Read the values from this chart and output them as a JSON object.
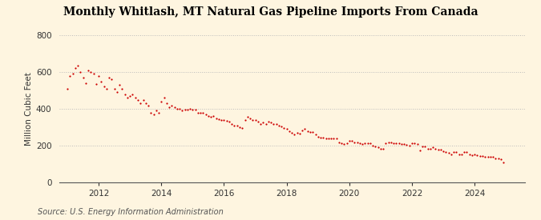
{
  "title": "Monthly Whitlash, MT Natural Gas Pipeline Imports From Canada",
  "ylabel": "Million Cubic Feet",
  "source": "Source: U.S. Energy Information Administration",
  "background_color": "#FEF5E0",
  "plot_bg_color": "#FEF5E0",
  "dot_color": "#CC0000",
  "dot_size": 2.5,
  "ylim": [
    0,
    800
  ],
  "yticks": [
    0,
    200,
    400,
    600,
    800
  ],
  "xlim_start": 2010.75,
  "xlim_end": 2025.6,
  "xticks": [
    2012,
    2014,
    2016,
    2018,
    2020,
    2022,
    2024
  ],
  "grid_color": "#BBBBBB",
  "data": [
    [
      2011.0,
      510
    ],
    [
      2011.083,
      580
    ],
    [
      2011.167,
      590
    ],
    [
      2011.25,
      620
    ],
    [
      2011.333,
      635
    ],
    [
      2011.417,
      600
    ],
    [
      2011.5,
      570
    ],
    [
      2011.583,
      540
    ],
    [
      2011.667,
      610
    ],
    [
      2011.75,
      600
    ],
    [
      2011.833,
      590
    ],
    [
      2011.917,
      535
    ],
    [
      2012.0,
      580
    ],
    [
      2012.083,
      550
    ],
    [
      2012.167,
      520
    ],
    [
      2012.25,
      510
    ],
    [
      2012.333,
      570
    ],
    [
      2012.417,
      560
    ],
    [
      2012.5,
      510
    ],
    [
      2012.583,
      490
    ],
    [
      2012.667,
      530
    ],
    [
      2012.75,
      510
    ],
    [
      2012.833,
      480
    ],
    [
      2012.917,
      460
    ],
    [
      2013.0,
      470
    ],
    [
      2013.083,
      480
    ],
    [
      2013.167,
      460
    ],
    [
      2013.25,
      450
    ],
    [
      2013.333,
      430
    ],
    [
      2013.417,
      450
    ],
    [
      2013.5,
      430
    ],
    [
      2013.583,
      420
    ],
    [
      2013.667,
      380
    ],
    [
      2013.75,
      370
    ],
    [
      2013.833,
      390
    ],
    [
      2013.917,
      380
    ],
    [
      2014.0,
      440
    ],
    [
      2014.083,
      460
    ],
    [
      2014.167,
      430
    ],
    [
      2014.25,
      410
    ],
    [
      2014.333,
      420
    ],
    [
      2014.417,
      410
    ],
    [
      2014.5,
      400
    ],
    [
      2014.583,
      400
    ],
    [
      2014.667,
      390
    ],
    [
      2014.75,
      395
    ],
    [
      2014.833,
      395
    ],
    [
      2014.917,
      400
    ],
    [
      2015.0,
      395
    ],
    [
      2015.083,
      395
    ],
    [
      2015.167,
      380
    ],
    [
      2015.25,
      380
    ],
    [
      2015.333,
      380
    ],
    [
      2015.417,
      370
    ],
    [
      2015.5,
      360
    ],
    [
      2015.583,
      355
    ],
    [
      2015.667,
      360
    ],
    [
      2015.75,
      350
    ],
    [
      2015.833,
      345
    ],
    [
      2015.917,
      340
    ],
    [
      2016.0,
      340
    ],
    [
      2016.083,
      335
    ],
    [
      2016.167,
      330
    ],
    [
      2016.25,
      320
    ],
    [
      2016.333,
      310
    ],
    [
      2016.417,
      310
    ],
    [
      2016.5,
      300
    ],
    [
      2016.583,
      295
    ],
    [
      2016.667,
      340
    ],
    [
      2016.75,
      355
    ],
    [
      2016.833,
      350
    ],
    [
      2016.917,
      340
    ],
    [
      2017.0,
      340
    ],
    [
      2017.083,
      330
    ],
    [
      2017.167,
      320
    ],
    [
      2017.25,
      325
    ],
    [
      2017.333,
      320
    ],
    [
      2017.417,
      330
    ],
    [
      2017.5,
      325
    ],
    [
      2017.583,
      320
    ],
    [
      2017.667,
      320
    ],
    [
      2017.75,
      310
    ],
    [
      2017.833,
      305
    ],
    [
      2017.917,
      295
    ],
    [
      2018.0,
      290
    ],
    [
      2018.083,
      280
    ],
    [
      2018.167,
      270
    ],
    [
      2018.25,
      260
    ],
    [
      2018.333,
      270
    ],
    [
      2018.417,
      265
    ],
    [
      2018.5,
      285
    ],
    [
      2018.583,
      290
    ],
    [
      2018.667,
      280
    ],
    [
      2018.75,
      275
    ],
    [
      2018.833,
      275
    ],
    [
      2018.917,
      260
    ],
    [
      2019.0,
      250
    ],
    [
      2019.083,
      245
    ],
    [
      2019.167,
      245
    ],
    [
      2019.25,
      240
    ],
    [
      2019.333,
      240
    ],
    [
      2019.417,
      240
    ],
    [
      2019.5,
      240
    ],
    [
      2019.583,
      240
    ],
    [
      2019.667,
      220
    ],
    [
      2019.75,
      215
    ],
    [
      2019.833,
      210
    ],
    [
      2019.917,
      215
    ],
    [
      2020.0,
      225
    ],
    [
      2020.083,
      225
    ],
    [
      2020.167,
      220
    ],
    [
      2020.25,
      220
    ],
    [
      2020.333,
      215
    ],
    [
      2020.417,
      210
    ],
    [
      2020.5,
      215
    ],
    [
      2020.583,
      215
    ],
    [
      2020.667,
      215
    ],
    [
      2020.75,
      200
    ],
    [
      2020.833,
      195
    ],
    [
      2020.917,
      190
    ],
    [
      2021.0,
      185
    ],
    [
      2021.083,
      185
    ],
    [
      2021.167,
      215
    ],
    [
      2021.25,
      220
    ],
    [
      2021.333,
      220
    ],
    [
      2021.417,
      215
    ],
    [
      2021.5,
      215
    ],
    [
      2021.583,
      215
    ],
    [
      2021.667,
      210
    ],
    [
      2021.75,
      210
    ],
    [
      2021.833,
      205
    ],
    [
      2021.917,
      200
    ],
    [
      2022.0,
      215
    ],
    [
      2022.083,
      215
    ],
    [
      2022.167,
      210
    ],
    [
      2022.25,
      175
    ],
    [
      2022.333,
      195
    ],
    [
      2022.417,
      195
    ],
    [
      2022.5,
      185
    ],
    [
      2022.583,
      185
    ],
    [
      2022.667,
      190
    ],
    [
      2022.75,
      185
    ],
    [
      2022.833,
      180
    ],
    [
      2022.917,
      180
    ],
    [
      2023.0,
      170
    ],
    [
      2023.083,
      165
    ],
    [
      2023.167,
      160
    ],
    [
      2023.25,
      155
    ],
    [
      2023.333,
      165
    ],
    [
      2023.417,
      165
    ],
    [
      2023.5,
      155
    ],
    [
      2023.583,
      155
    ],
    [
      2023.667,
      165
    ],
    [
      2023.75,
      165
    ],
    [
      2023.833,
      155
    ],
    [
      2023.917,
      150
    ],
    [
      2024.0,
      155
    ],
    [
      2024.083,
      150
    ],
    [
      2024.167,
      145
    ],
    [
      2024.25,
      145
    ],
    [
      2024.333,
      140
    ],
    [
      2024.417,
      140
    ],
    [
      2024.5,
      140
    ],
    [
      2024.583,
      140
    ],
    [
      2024.667,
      130
    ],
    [
      2024.75,
      130
    ],
    [
      2024.833,
      125
    ],
    [
      2024.917,
      110
    ]
  ]
}
